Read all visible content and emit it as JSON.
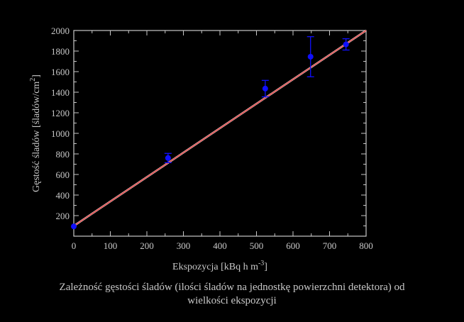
{
  "chart_data": {
    "type": "scatter",
    "title": "",
    "xlabel": "Ekspozycja [kBq h m",
    "xlabel_sup": "-3",
    "xlabel_end": "]",
    "ylabel": "Gęstość śladów [śladów/cm",
    "ylabel_sup": "2",
    "ylabel_end": "]",
    "xlim": [
      0,
      800
    ],
    "ylim": [
      0,
      2000
    ],
    "xticks": [
      0,
      100,
      200,
      300,
      400,
      500,
      600,
      700,
      800
    ],
    "yticks": [
      200,
      400,
      600,
      800,
      1000,
      1200,
      1400,
      1600,
      1800,
      2000
    ],
    "grid": false,
    "series": [
      {
        "points": [
          {
            "x": 0,
            "y": 95,
            "err": 0
          },
          {
            "x": 258,
            "y": 760,
            "err": 45
          },
          {
            "x": 524,
            "y": 1435,
            "err": 80
          },
          {
            "x": 648,
            "y": 1745,
            "err": 195
          },
          {
            "x": 745,
            "y": 1865,
            "err": 55
          }
        ]
      }
    ],
    "fit_line": {
      "x": [
        0,
        800
      ],
      "y": [
        100,
        2000
      ]
    },
    "colors": {
      "points": "#1010ff",
      "fit": "#e03030",
      "axis": "#c8c8c8",
      "plot_bg": "#000000"
    }
  },
  "caption": {
    "line1": "Zależność gęstości śladów (ilości śladów na jednostkę powierzchni detektora) od",
    "line2": "wielkości ekspozycji"
  }
}
